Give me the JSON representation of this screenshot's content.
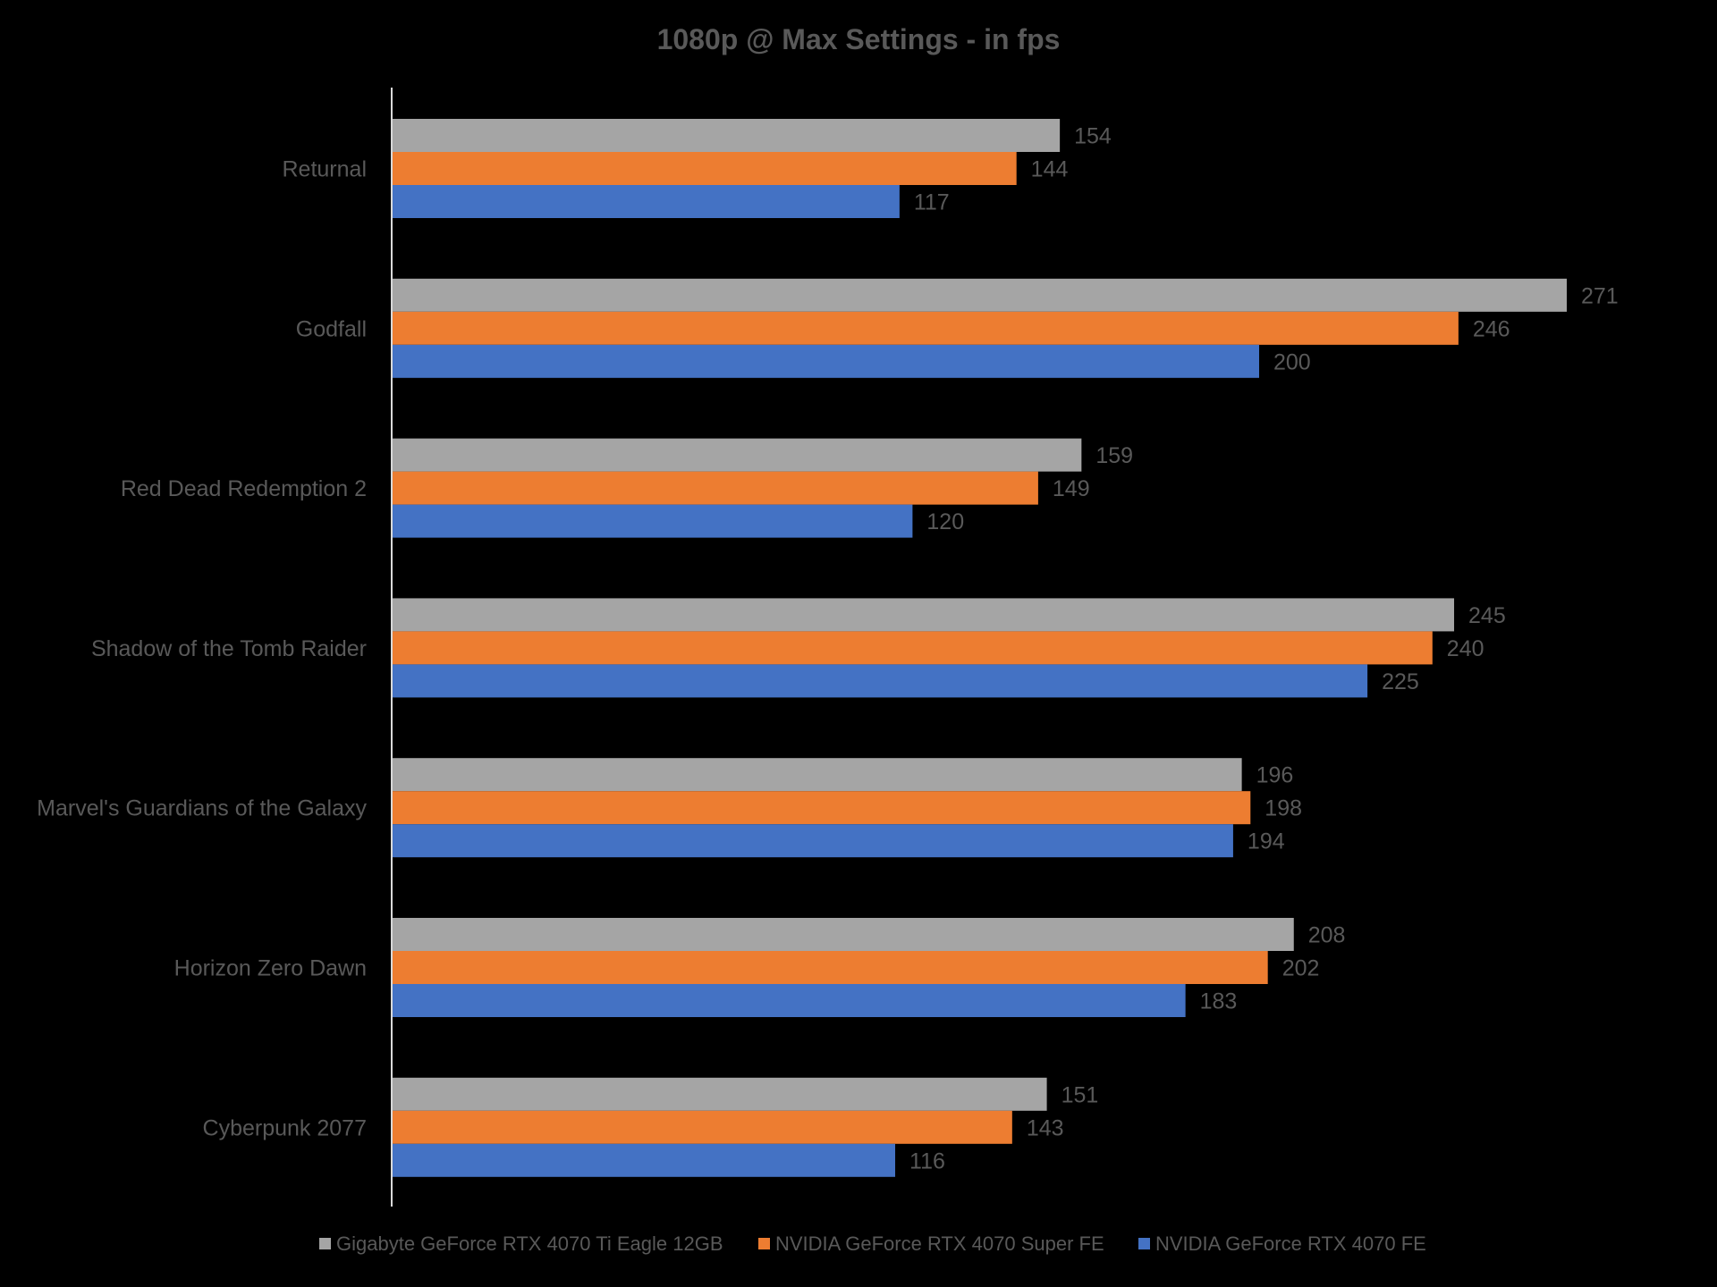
{
  "chart_data": {
    "type": "bar",
    "orientation": "horizontal",
    "title": "1080p @ Max Settings - in fps",
    "xlabel": "",
    "ylabel": "",
    "xlim": [
      0,
      290
    ],
    "grid": false,
    "legend_position": "bottom",
    "categories": [
      "Returnal",
      "Godfall",
      "Red Dead Redemption 2",
      "Shadow of the Tomb Raider",
      "Marvel's Guardians of the Galaxy",
      "Horizon Zero Dawn",
      "Cyberpunk 2077"
    ],
    "series": [
      {
        "name": "Gigabyte GeForce RTX 4070 Ti Eagle 12GB",
        "color": "#A5A5A5",
        "values": [
          154,
          271,
          159,
          245,
          196,
          208,
          151
        ]
      },
      {
        "name": "NVIDIA GeForce RTX 4070 Super FE",
        "color": "#ED7D31",
        "values": [
          144,
          246,
          149,
          240,
          198,
          202,
          143
        ]
      },
      {
        "name": "NVIDIA GeForce RTX 4070 FE",
        "color": "#4472C4",
        "values": [
          117,
          200,
          120,
          225,
          194,
          183,
          116
        ]
      }
    ]
  },
  "colors": {
    "background": "#000000",
    "text": "#595959",
    "axis": "#D9D9D9"
  }
}
